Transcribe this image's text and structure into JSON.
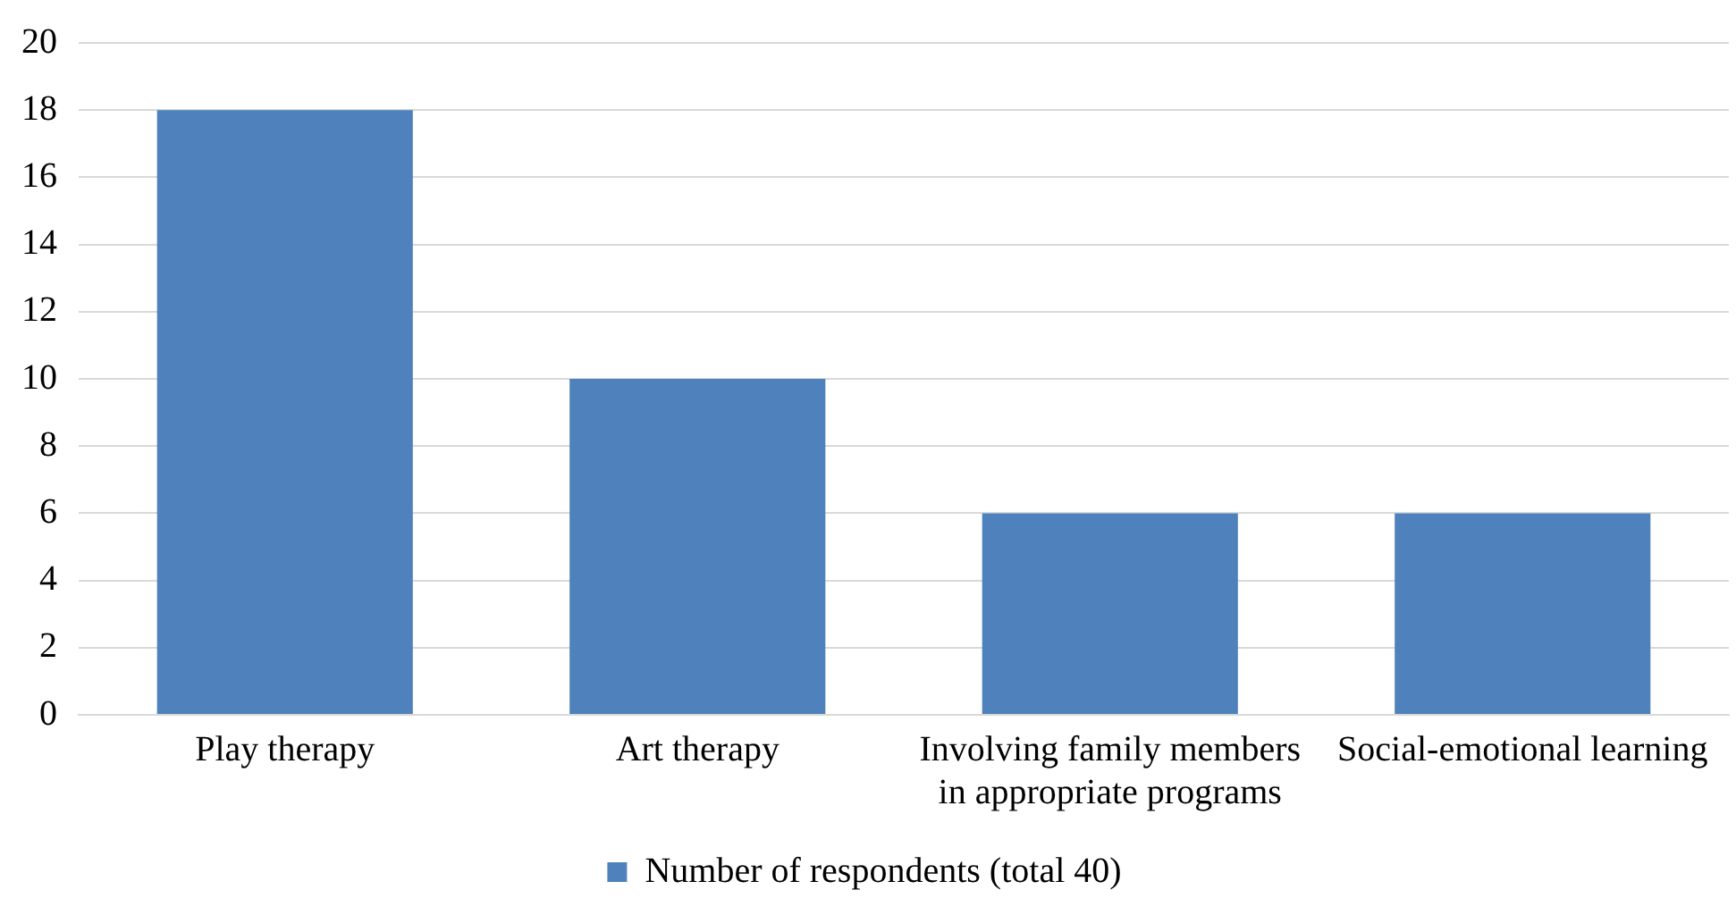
{
  "chart_data": {
    "type": "bar",
    "categories": [
      "Play therapy",
      "Art therapy",
      "Involving family members in appropriate programs",
      "Social-emotional learning"
    ],
    "series": [
      {
        "name": "Number of respondents (total 40)",
        "color": "#4f81bd",
        "values": [
          18,
          10,
          6,
          6
        ]
      }
    ],
    "ylim": [
      0,
      20
    ],
    "yticks": [
      0,
      2,
      4,
      6,
      8,
      10,
      12,
      14,
      16,
      18,
      20
    ],
    "grid": "y",
    "legend": "bottom"
  }
}
